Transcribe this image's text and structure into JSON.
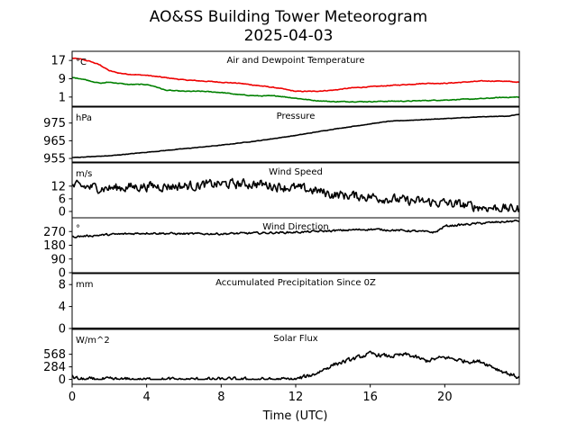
{
  "figure": {
    "title_line1": "AO&SS Building Tower Meteorogram",
    "title_line2": "2025-04-03",
    "xlabel": "Time (UTC)",
    "xlim": [
      0,
      24
    ],
    "xticks": [
      0,
      4,
      8,
      12,
      16,
      20
    ],
    "xtick_labels": [
      "0",
      "4",
      "8",
      "12",
      "16",
      "20"
    ]
  },
  "chart_data": [
    {
      "type": "line",
      "title": "Air and Dewpoint Temperature",
      "unit": "°C",
      "ylim": [
        -3,
        21
      ],
      "yticks": [
        1,
        9,
        17
      ],
      "ytick_labels": [
        "1",
        "9",
        "17"
      ],
      "series": [
        {
          "color": "#ee0000",
          "noise": 0.25,
          "x": [
            0,
            0.5,
            1,
            1.5,
            2,
            2.5,
            3,
            4,
            5,
            6,
            7,
            8,
            9,
            10,
            11,
            12,
            13,
            14,
            15,
            16,
            17,
            18,
            19,
            20,
            21,
            22,
            23,
            24
          ],
          "y": [
            18,
            17.5,
            16.5,
            15,
            12.5,
            11.5,
            11,
            10.5,
            9.5,
            8.5,
            8,
            7.5,
            7,
            6,
            5,
            3.5,
            3.5,
            4,
            5,
            5.5,
            6,
            6.5,
            7,
            7,
            7.5,
            8,
            8,
            7.5
          ]
        },
        {
          "color": "#008000",
          "noise": 0.25,
          "x": [
            0,
            0.5,
            1,
            1.5,
            2,
            2.5,
            3,
            4,
            4.5,
            5,
            6,
            7,
            8,
            9,
            10,
            11,
            12,
            13,
            14,
            15,
            16,
            17,
            18,
            19,
            20,
            21,
            22,
            23,
            24
          ],
          "y": [
            9.5,
            9,
            8,
            7,
            7.5,
            7,
            6.5,
            6.5,
            5.5,
            4,
            3.5,
            3.5,
            3,
            2,
            1.5,
            1.5,
            0.5,
            -0.5,
            -1,
            -1,
            -1,
            -0.8,
            -0.8,
            -0.5,
            -0.3,
            0,
            0.3,
            0.8,
            1
          ]
        }
      ]
    },
    {
      "type": "line",
      "title": "Pressure",
      "unit": "hPa",
      "ylim": [
        953,
        984
      ],
      "yticks": [
        955,
        965,
        975
      ],
      "ytick_labels": [
        "955",
        "965",
        "975"
      ],
      "series": [
        {
          "color": "#000000",
          "noise": 0.2,
          "x": [
            0,
            2,
            4,
            6,
            8,
            10,
            12,
            14,
            16,
            17,
            18,
            20,
            22,
            23.5,
            24
          ],
          "y": [
            955.5,
            956.5,
            958.5,
            960.5,
            962.5,
            965,
            968,
            971.5,
            974.5,
            976,
            976.5,
            977.5,
            978.5,
            979,
            980
          ]
        }
      ]
    },
    {
      "type": "line",
      "title": "Wind Speed",
      "unit": "m/s",
      "ylim": [
        -3,
        23
      ],
      "yticks": [
        0,
        6,
        12
      ],
      "ytick_labels": [
        "0",
        "6",
        "12"
      ],
      "series": [
        {
          "color": "#000000",
          "noise": 3.5,
          "x": [
            0,
            2,
            4,
            6,
            8,
            10,
            11,
            12,
            13,
            14,
            16,
            17,
            18,
            20,
            21,
            22,
            23,
            24
          ],
          "y": [
            12,
            11,
            12,
            12,
            13,
            13,
            12,
            11,
            10,
            8,
            7,
            6,
            5,
            4,
            3,
            2,
            1.5,
            1
          ]
        }
      ]
    },
    {
      "type": "line",
      "title": "Wind Direction",
      "unit": "°",
      "ylim": [
        0,
        360
      ],
      "yticks": [
        0,
        90,
        180,
        270
      ],
      "ytick_labels": [
        "0",
        "90",
        "180",
        "270"
      ],
      "series": [
        {
          "color": "#000000",
          "noise": 10,
          "x": [
            0,
            2,
            4,
            6,
            8,
            10,
            12,
            14,
            16,
            18,
            19.5,
            20,
            22,
            24
          ],
          "y": [
            235,
            250,
            260,
            255,
            255,
            260,
            265,
            275,
            285,
            275,
            265,
            305,
            325,
            340
          ]
        }
      ]
    },
    {
      "type": "line",
      "title": "Accumulated Precipitation Since 0Z",
      "unit": "mm",
      "ylim": [
        0,
        10
      ],
      "yticks": [
        0,
        4,
        8
      ],
      "ytick_labels": [
        "0",
        "4",
        "8"
      ],
      "series": [
        {
          "color": "#000000",
          "noise": 0,
          "x": [
            0,
            24
          ],
          "y": [
            0,
            0
          ]
        }
      ]
    },
    {
      "type": "line",
      "title": "Solar Flux",
      "unit": "W/m^2",
      "ylim": [
        -110,
        1130
      ],
      "yticks": [
        0,
        284,
        568
      ],
      "ytick_labels": [
        "0",
        "284",
        "568"
      ],
      "series": [
        {
          "color": "#000000",
          "noise": 70,
          "x": [
            0,
            0.3,
            0.6,
            1,
            11.5,
            12,
            13,
            14,
            15,
            16,
            17,
            18,
            19,
            20,
            21,
            22,
            23,
            24
          ],
          "y": [
            60,
            15,
            0,
            0,
            0,
            0,
            120,
            330,
            450,
            580,
            520,
            560,
            420,
            500,
            420,
            400,
            200,
            40
          ]
        }
      ]
    }
  ]
}
